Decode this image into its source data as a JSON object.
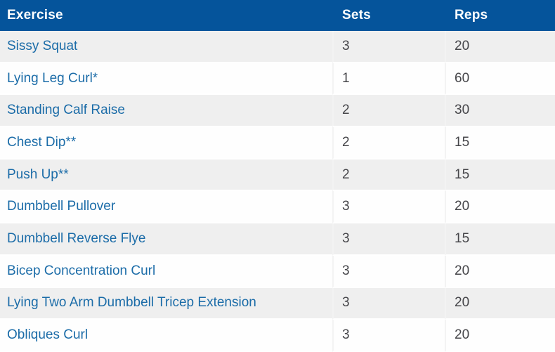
{
  "table": {
    "columns": [
      {
        "key": "exercise",
        "label": "Exercise"
      },
      {
        "key": "sets",
        "label": "Sets"
      },
      {
        "key": "reps",
        "label": "Reps"
      }
    ],
    "rows": [
      {
        "exercise": "Sissy Squat",
        "sets": "3",
        "reps": "20"
      },
      {
        "exercise": "Lying Leg Curl*",
        "sets": "1",
        "reps": "60"
      },
      {
        "exercise": "Standing Calf Raise",
        "sets": "2",
        "reps": "30"
      },
      {
        "exercise": "Chest Dip**",
        "sets": "2",
        "reps": "15"
      },
      {
        "exercise": "Push Up**",
        "sets": "2",
        "reps": "15"
      },
      {
        "exercise": "Dumbbell Pullover",
        "sets": "3",
        "reps": "20"
      },
      {
        "exercise": "Dumbbell Reverse Flye",
        "sets": "3",
        "reps": "15"
      },
      {
        "exercise": "Bicep Concentration Curl",
        "sets": "3",
        "reps": "20"
      },
      {
        "exercise": "Lying Two Arm Dumbbell Tricep Extension",
        "sets": "3",
        "reps": "20"
      },
      {
        "exercise": "Obliques Curl",
        "sets": "3",
        "reps": "20"
      }
    ]
  },
  "colors": {
    "header_bg": "#05549b",
    "header_text": "#ffffff",
    "row_odd_bg": "#efefef",
    "row_even_bg": "#fefefe",
    "link_color": "#1b6ca8",
    "value_color": "#46464a",
    "divider_color": "#f3f3f3"
  }
}
